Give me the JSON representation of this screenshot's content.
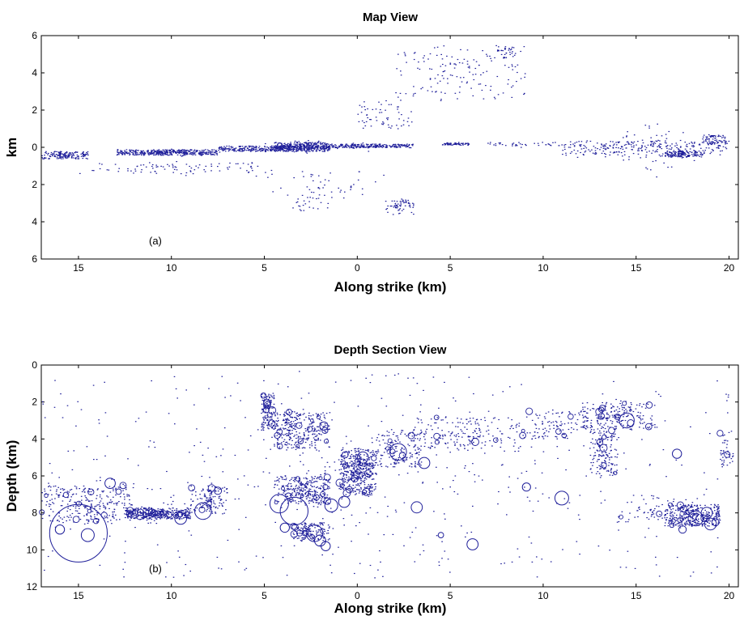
{
  "colors": {
    "marker": "#1f1f9a",
    "axis": "#000000",
    "background": "#ffffff"
  },
  "chart_data": [
    {
      "type": "scatter",
      "title": "Map View",
      "xlabel": "Along strike (km)",
      "ylabel": "km",
      "annotation": "(a)",
      "xlim": [
        -17,
        20.5
      ],
      "ylim": [
        6,
        -6
      ],
      "x_tick_values": [
        -15,
        -10,
        -5,
        0,
        5,
        10,
        15,
        20
      ],
      "x_tick_labels": [
        "15",
        "10",
        "5",
        "0",
        "5",
        "10",
        "15",
        "20"
      ],
      "y_tick_values": [
        -6,
        -4,
        -2,
        0,
        2,
        4,
        6
      ],
      "y_tick_labels": [
        "6",
        "4",
        "2",
        "0",
        "2",
        "4",
        "6"
      ],
      "grid": false,
      "legend": "none",
      "series": [
        {
          "clusters": [
            {
              "x": [
                -17,
                -14.5
              ],
              "y": [
                -0.6,
                -0.2
              ],
              "n": 160,
              "sx": 0.9,
              "sy": 0.15
            },
            {
              "x": [
                -13,
                -7.5
              ],
              "y": [
                -0.4,
                -0.1
              ],
              "n": 420,
              "sx": 2.0,
              "sy": 0.12
            },
            {
              "x": [
                -7.5,
                -1.5
              ],
              "y": [
                -0.2,
                0.1
              ],
              "n": 420,
              "sx": 2.2,
              "sy": 0.15
            },
            {
              "x": [
                -4.5,
                -1.5
              ],
              "y": [
                -0.1,
                0.3
              ],
              "n": 280,
              "sx": 1.0,
              "sy": 0.25
            },
            {
              "x": [
                -1.5,
                3
              ],
              "y": [
                0.0,
                0.2
              ],
              "n": 260,
              "sx": 1.4,
              "sy": 0.1
            },
            {
              "x": [
                4.5,
                6
              ],
              "y": [
                0.15,
                0.25
              ],
              "n": 60,
              "sx": 0.5,
              "sy": 0.08
            },
            {
              "x": [
                7,
                11
              ],
              "y": [
                0.1,
                0.3
              ],
              "n": 40,
              "sx": 1.5,
              "sy": 0.12
            },
            {
              "x": [
                11,
                20
              ],
              "y": [
                -0.4,
                0.4
              ],
              "n": 330,
              "sx": 2.5,
              "sy": 0.9
            },
            {
              "x": [
                16.5,
                18.5
              ],
              "y": [
                -0.5,
                -0.2
              ],
              "n": 140,
              "sx": 0.7,
              "sy": 0.15
            },
            {
              "x": [
                18.5,
                20
              ],
              "y": [
                0.2,
                0.7
              ],
              "n": 60,
              "sx": 0.5,
              "sy": 0.3
            },
            {
              "x": [
                -15,
                -5
              ],
              "y": [
                -1.4,
                -0.8
              ],
              "n": 90,
              "sx": 3.0,
              "sy": 0.3
            },
            {
              "x": [
                1.5,
                3
              ],
              "y": [
                -3.6,
                -2.8
              ],
              "n": 60,
              "sx": 0.4,
              "sy": 0.3
            },
            {
              "x": [
                -3.5,
                -1.5
              ],
              "y": [
                -3.6,
                -2.5
              ],
              "n": 25,
              "sx": 0.8,
              "sy": 0.5
            },
            {
              "x": [
                0,
                3
              ],
              "y": [
                1.0,
                2.5
              ],
              "n": 60,
              "sx": 1.0,
              "sy": 0.6
            },
            {
              "x": [
                2,
                9
              ],
              "y": [
                2.5,
                5.5
              ],
              "n": 150,
              "sx": 2.0,
              "sy": 0.9
            },
            {
              "x": [
                7.5,
                8.5
              ],
              "y": [
                4.8,
                5.5
              ],
              "n": 35,
              "sx": 0.3,
              "sy": 0.2
            },
            {
              "x": [
                -6,
                2
              ],
              "y": [
                -2.8,
                -1.2
              ],
              "n": 50,
              "sx": 2.2,
              "sy": 0.5
            }
          ]
        }
      ]
    },
    {
      "type": "scatter",
      "title": "Depth Section View",
      "xlabel": "Along strike (km)",
      "ylabel": "Depth (km)",
      "annotation": "(b)",
      "xlim": [
        -17,
        20.5
      ],
      "ylim": [
        0,
        12
      ],
      "x_tick_values": [
        -15,
        -10,
        -5,
        0,
        5,
        10,
        15,
        20
      ],
      "x_tick_labels": [
        "15",
        "10",
        "5",
        "0",
        "5",
        "10",
        "15",
        "20"
      ],
      "y_tick_values": [
        0,
        2,
        4,
        6,
        8,
        10,
        12
      ],
      "y_tick_labels": [
        "0",
        "2",
        "4",
        "6",
        "8",
        "10",
        "12"
      ],
      "grid": false,
      "legend": "none",
      "series": [
        {
          "clusters": [
            {
              "x": [
                -17,
                -12
              ],
              "y": [
                6.5,
                8.5
              ],
              "n": 280,
              "sx": 1.4,
              "sy": 0.9
            },
            {
              "x": [
                -12.5,
                -9
              ],
              "y": [
                7.7,
                8.3
              ],
              "n": 360,
              "sx": 1.1,
              "sy": 0.35
            },
            {
              "x": [
                -9,
                -7
              ],
              "y": [
                6.5,
                8.0
              ],
              "n": 120,
              "sx": 0.6,
              "sy": 0.6
            },
            {
              "x": [
                -5.2,
                -4.5
              ],
              "y": [
                1.5,
                3.5
              ],
              "n": 140,
              "sx": 0.3,
              "sy": 0.7
            },
            {
              "x": [
                -4.5,
                -3
              ],
              "y": [
                2.5,
                4.5
              ],
              "n": 180,
              "sx": 0.5,
              "sy": 0.8
            },
            {
              "x": [
                -4.5,
                -1.5
              ],
              "y": [
                6.0,
                7.5
              ],
              "n": 300,
              "sx": 0.9,
              "sy": 0.7
            },
            {
              "x": [
                -3.5,
                -1.5
              ],
              "y": [
                8.5,
                9.5
              ],
              "n": 150,
              "sx": 0.7,
              "sy": 0.4
            },
            {
              "x": [
                -3,
                -1.5
              ],
              "y": [
                2.5,
                4.5
              ],
              "n": 120,
              "sx": 0.5,
              "sy": 0.9
            },
            {
              "x": [
                -1,
                1
              ],
              "y": [
                4.5,
                7
              ],
              "n": 420,
              "sx": 0.6,
              "sy": 0.9
            },
            {
              "x": [
                1,
                3.5
              ],
              "y": [
                3.5,
                5.5
              ],
              "n": 150,
              "sx": 0.9,
              "sy": 0.8
            },
            {
              "x": [
                3,
                9
              ],
              "y": [
                2.8,
                4.5
              ],
              "n": 180,
              "sx": 2.0,
              "sy": 0.6
            },
            {
              "x": [
                9,
                12
              ],
              "y": [
                2.5,
                4.0
              ],
              "n": 90,
              "sx": 1.0,
              "sy": 0.6
            },
            {
              "x": [
                12,
                16
              ],
              "y": [
                2.0,
                3.5
              ],
              "n": 220,
              "sx": 1.2,
              "sy": 0.6
            },
            {
              "x": [
                12.5,
                14
              ],
              "y": [
                3.5,
                6.0
              ],
              "n": 150,
              "sx": 0.6,
              "sy": 0.9
            },
            {
              "x": [
                14,
                17
              ],
              "y": [
                7.0,
                8.5
              ],
              "n": 60,
              "sx": 1.0,
              "sy": 0.8
            },
            {
              "x": [
                16.5,
                19.5
              ],
              "y": [
                7.5,
                8.7
              ],
              "n": 320,
              "sx": 0.9,
              "sy": 0.5
            },
            {
              "x": [
                19.5,
                20.2
              ],
              "y": [
                3.5,
                5.5
              ],
              "n": 40,
              "sx": 0.3,
              "sy": 0.7
            },
            {
              "x": [
                -17,
                20
              ],
              "y": [
                0.5,
                11.5
              ],
              "n": 500,
              "sx": 12,
              "sy": 3.5
            }
          ]
        }
      ],
      "large_events": [
        {
          "x": -15,
          "y": 9.1,
          "r_km": 1.55
        },
        {
          "x": -14.5,
          "y": 9.2,
          "r_km": 0.35
        },
        {
          "x": -16.0,
          "y": 8.9,
          "r_km": 0.25
        },
        {
          "x": -13.3,
          "y": 6.4,
          "r_km": 0.28
        },
        {
          "x": -9.5,
          "y": 8.3,
          "r_km": 0.32
        },
        {
          "x": -8.3,
          "y": 7.9,
          "r_km": 0.45
        },
        {
          "x": -7.5,
          "y": 6.8,
          "r_km": 0.2
        },
        {
          "x": -4.2,
          "y": 7.5,
          "r_km": 0.5
        },
        {
          "x": -3.4,
          "y": 7.9,
          "r_km": 0.75
        },
        {
          "x": -3.9,
          "y": 8.8,
          "r_km": 0.25
        },
        {
          "x": -2.3,
          "y": 9.1,
          "r_km": 0.45
        },
        {
          "x": -2.0,
          "y": 9.5,
          "r_km": 0.3
        },
        {
          "x": -1.7,
          "y": 9.8,
          "r_km": 0.25
        },
        {
          "x": -1.4,
          "y": 7.6,
          "r_km": 0.35
        },
        {
          "x": -0.7,
          "y": 7.4,
          "r_km": 0.3
        },
        {
          "x": -1.8,
          "y": 3.3,
          "r_km": 0.22
        },
        {
          "x": 0.3,
          "y": 5.0,
          "r_km": 0.3
        },
        {
          "x": 2.2,
          "y": 4.7,
          "r_km": 0.45
        },
        {
          "x": 3.6,
          "y": 5.3,
          "r_km": 0.3
        },
        {
          "x": 3.2,
          "y": 7.7,
          "r_km": 0.3
        },
        {
          "x": 4.5,
          "y": 9.2,
          "r_km": 0.15
        },
        {
          "x": 6.2,
          "y": 9.7,
          "r_km": 0.3
        },
        {
          "x": 9.1,
          "y": 6.6,
          "r_km": 0.22
        },
        {
          "x": 11.0,
          "y": 7.2,
          "r_km": 0.37
        },
        {
          "x": 14.5,
          "y": 3.0,
          "r_km": 0.4
        },
        {
          "x": 17.2,
          "y": 4.8,
          "r_km": 0.25
        },
        {
          "x": 18.2,
          "y": 8.3,
          "r_km": 0.4
        },
        {
          "x": 18.8,
          "y": 8.0,
          "r_km": 0.3
        },
        {
          "x": 19.0,
          "y": 8.6,
          "r_km": 0.32
        },
        {
          "x": 17.5,
          "y": 8.9,
          "r_km": 0.2
        }
      ]
    }
  ]
}
